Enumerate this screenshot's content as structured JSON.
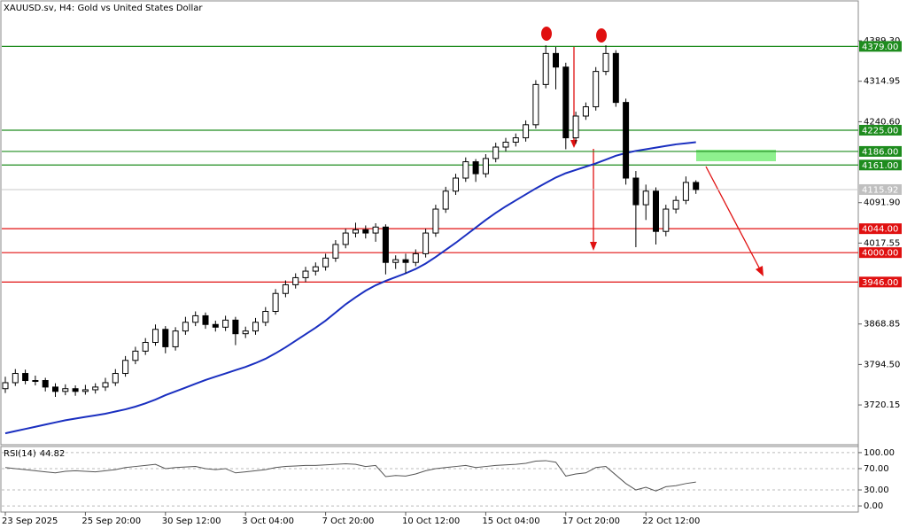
{
  "chart_data": {
    "type": "candlestick",
    "title": "XAUUSD.sv, H4:  Gold vs United States Dollar",
    "categories": [
      "23 Sep 2025",
      null,
      null,
      null,
      null,
      null,
      null,
      null,
      "25 Sep 20:00",
      null,
      null,
      null,
      null,
      null,
      null,
      null,
      "30 Sep 12:00",
      null,
      null,
      null,
      null,
      null,
      null,
      null,
      "3 Oct 04:00",
      null,
      null,
      null,
      null,
      null,
      null,
      null,
      "7 Oct 20:00",
      null,
      null,
      null,
      null,
      null,
      null,
      null,
      "10 Oct 12:00",
      null,
      null,
      null,
      null,
      null,
      null,
      null,
      "15 Oct 04:00",
      null,
      null,
      null,
      null,
      null,
      null,
      null,
      "17 Oct 20:00",
      null,
      null,
      null,
      null,
      null,
      null,
      null,
      "22 Oct 12:00",
      null,
      null,
      null,
      null,
      null
    ],
    "candles": {
      "open": [
        3750,
        3761,
        3778,
        3765,
        3765,
        3753,
        3745,
        3750,
        3745,
        3748,
        3753,
        3761,
        3778,
        3802,
        3819,
        3835,
        3859,
        3827,
        3856,
        3872,
        3884,
        3868,
        3863,
        3876,
        3851,
        3856,
        3872,
        3892,
        3925,
        3941,
        3954,
        3966,
        3974,
        3990,
        4015,
        4036,
        4042,
        4036,
        4047,
        3982,
        3987,
        3982,
        3998,
        4036,
        4080,
        4113,
        4137,
        4167,
        4145,
        4173,
        4194,
        4203,
        4211,
        4235,
        4309,
        4366,
        4341,
        4211,
        4251,
        4268,
        4333,
        4366,
        4276,
        4137,
        4088,
        4113,
        4039,
        4080,
        4096,
        4129
      ],
      "high": [
        3772,
        3786,
        3785,
        3774,
        3770,
        3760,
        3758,
        3756,
        3757,
        3760,
        3770,
        3786,
        3810,
        3827,
        3843,
        3868,
        3865,
        3863,
        3882,
        3892,
        3890,
        3875,
        3884,
        3882,
        3864,
        3880,
        3900,
        3933,
        3949,
        3962,
        3974,
        3982,
        3998,
        4023,
        4044,
        4055,
        4050,
        4054,
        4052,
        3995,
        3998,
        4006,
        4044,
        4088,
        4121,
        4145,
        4175,
        4172,
        4181,
        4202,
        4211,
        4219,
        4243,
        4317,
        4381,
        4378,
        4349,
        4259,
        4276,
        4341,
        4381,
        4372,
        4283,
        4150,
        4125,
        4120,
        4088,
        4104,
        4140,
        4133
      ],
      "low": [
        3742,
        3755,
        3758,
        3756,
        3745,
        3735,
        3738,
        3737,
        3739,
        3741,
        3746,
        3755,
        3772,
        3795,
        3812,
        3829,
        3815,
        3820,
        3849,
        3865,
        3860,
        3855,
        3856,
        3830,
        3843,
        3849,
        3865,
        3886,
        3918,
        3934,
        3946,
        3958,
        3967,
        3983,
        4008,
        4028,
        4026,
        4020,
        3960,
        3970,
        3962,
        3975,
        3991,
        4029,
        4073,
        4106,
        4130,
        4130,
        4138,
        4166,
        4186,
        4195,
        4204,
        4228,
        4302,
        4300,
        4190,
        4200,
        4244,
        4261,
        4326,
        4268,
        4125,
        4010,
        4060,
        4015,
        4030,
        4072,
        4089,
        4108
      ],
      "close": [
        3761,
        3778,
        3765,
        3765,
        3753,
        3745,
        3750,
        3745,
        3748,
        3753,
        3761,
        3778,
        3802,
        3819,
        3835,
        3859,
        3827,
        3856,
        3872,
        3884,
        3868,
        3863,
        3876,
        3851,
        3856,
        3872,
        3892,
        3925,
        3941,
        3954,
        3966,
        3974,
        3990,
        4015,
        4036,
        4042,
        4036,
        4047,
        3982,
        3987,
        3982,
        3998,
        4036,
        4080,
        4113,
        4137,
        4167,
        4145,
        4173,
        4194,
        4203,
        4211,
        4235,
        4309,
        4366,
        4341,
        4211,
        4251,
        4268,
        4333,
        4366,
        4276,
        4137,
        4088,
        4113,
        4039,
        4080,
        4096,
        4129,
        4115.92
      ]
    },
    "ma": {
      "color": "#1a2fc0",
      "values": [
        3668,
        3672,
        3676,
        3680,
        3684,
        3688,
        3692,
        3695,
        3698,
        3701,
        3704,
        3708,
        3712,
        3717,
        3723,
        3730,
        3738,
        3745,
        3752,
        3759,
        3766,
        3772,
        3778,
        3784,
        3790,
        3797,
        3805,
        3815,
        3826,
        3838,
        3850,
        3862,
        3875,
        3890,
        3905,
        3918,
        3930,
        3940,
        3948,
        3955,
        3962,
        3970,
        3980,
        3992,
        4005,
        4018,
        4032,
        4046,
        4060,
        4073,
        4085,
        4096,
        4107,
        4118,
        4128,
        4138,
        4146,
        4152,
        4158,
        4164,
        4171,
        4178,
        4183,
        4187,
        4190,
        4193,
        4196,
        4199,
        4201,
        4203
      ]
    },
    "ylim": [
      3647,
      4461
    ],
    "yticks": [
      {
        "value": 4389.3,
        "label": "4389.30"
      },
      4314.95,
      {
        "value": 4240.6,
        "label": "4240.60"
      },
      {
        "value": 4091.9,
        "label": "4091.90"
      },
      4017.55,
      3868.85,
      {
        "value": 3794.5,
        "label": "3794.50"
      },
      3720.15
    ],
    "levels": [
      {
        "value": 4379,
        "label": "4379.00",
        "color": "#1e8c1e"
      },
      {
        "value": 4225,
        "label": "4225.00",
        "color": "#1e8c1e"
      },
      {
        "value": 4186,
        "label": "4186.00",
        "color": "#1e8c1e"
      },
      {
        "value": 4161,
        "label": "4161.00",
        "color": "#1e8c1e"
      },
      {
        "value": 4044,
        "label": "4044.00",
        "color": "#e01010"
      },
      {
        "value": 4000,
        "label": "4000.00",
        "color": "#e01010"
      },
      {
        "value": 3946,
        "label": "3946.00",
        "color": "#e01010"
      }
    ],
    "rsi": {
      "name": "RSI(14)",
      "color": "#555555",
      "values": [
        72,
        70,
        68,
        66,
        64,
        62,
        65,
        66,
        65,
        64,
        66,
        68,
        72,
        74,
        76,
        78,
        70,
        72,
        73,
        74,
        70,
        68,
        70,
        62,
        64,
        66,
        68,
        72,
        74,
        75,
        76,
        76,
        77,
        78,
        79,
        78,
        74,
        76,
        55,
        57,
        56,
        60,
        66,
        70,
        72,
        74,
        76,
        72,
        74,
        76,
        77,
        78,
        80,
        84,
        85,
        82,
        56,
        60,
        62,
        72,
        74,
        58,
        42,
        30,
        35,
        28,
        36,
        38,
        42,
        44.82
      ],
      "ylim": [
        -11.5,
        111.5
      ],
      "yticks": [
        {
          "value": 100,
          "label": "100.00"
        },
        {
          "value": 70,
          "label": "70.00"
        },
        {
          "value": 30,
          "label": "30.00"
        },
        {
          "value": 0,
          "label": "0.00"
        }
      ]
    }
  }
}
